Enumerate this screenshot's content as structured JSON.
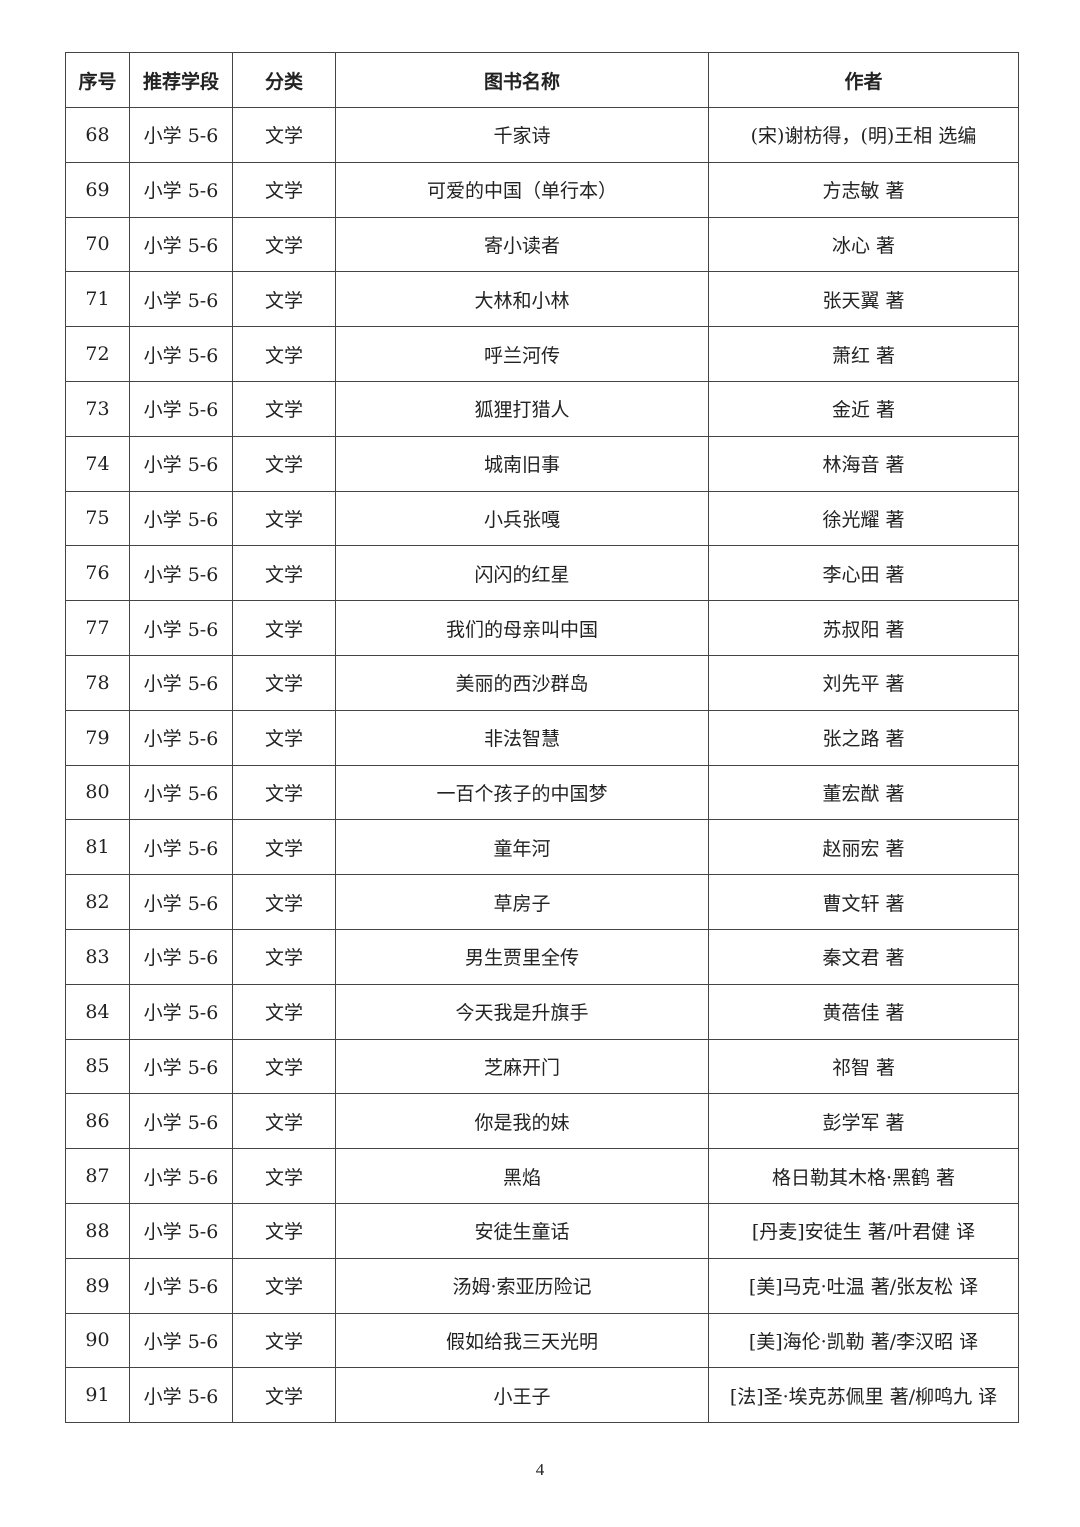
{
  "table": {
    "headers": [
      "序号",
      "推荐学段",
      "分类",
      "图书名称",
      "作者"
    ],
    "rows": [
      [
        "68",
        "小学 5-6",
        "文学",
        "千家诗",
        "(宋)谢枋得，(明)王相 选编"
      ],
      [
        "69",
        "小学 5-6",
        "文学",
        "可爱的中国（单行本）",
        "方志敏 著"
      ],
      [
        "70",
        "小学 5-6",
        "文学",
        "寄小读者",
        "冰心 著"
      ],
      [
        "71",
        "小学 5-6",
        "文学",
        "大林和小林",
        "张天翼 著"
      ],
      [
        "72",
        "小学 5-6",
        "文学",
        "呼兰河传",
        "萧红 著"
      ],
      [
        "73",
        "小学 5-6",
        "文学",
        "狐狸打猎人",
        "金近 著"
      ],
      [
        "74",
        "小学 5-6",
        "文学",
        "城南旧事",
        "林海音 著"
      ],
      [
        "75",
        "小学 5-6",
        "文学",
        "小兵张嘎",
        "徐光耀 著"
      ],
      [
        "76",
        "小学 5-6",
        "文学",
        "闪闪的红星",
        "李心田 著"
      ],
      [
        "77",
        "小学 5-6",
        "文学",
        "我们的母亲叫中国",
        "苏叔阳 著"
      ],
      [
        "78",
        "小学 5-6",
        "文学",
        "美丽的西沙群岛",
        "刘先平 著"
      ],
      [
        "79",
        "小学 5-6",
        "文学",
        "非法智慧",
        "张之路 著"
      ],
      [
        "80",
        "小学 5-6",
        "文学",
        "一百个孩子的中国梦",
        "董宏猷 著"
      ],
      [
        "81",
        "小学 5-6",
        "文学",
        "童年河",
        "赵丽宏 著"
      ],
      [
        "82",
        "小学 5-6",
        "文学",
        "草房子",
        "曹文轩 著"
      ],
      [
        "83",
        "小学 5-6",
        "文学",
        "男生贾里全传",
        "秦文君 著"
      ],
      [
        "84",
        "小学 5-6",
        "文学",
        "今天我是升旗手",
        "黄蓓佳 著"
      ],
      [
        "85",
        "小学 5-6",
        "文学",
        "芝麻开门",
        "祁智 著"
      ],
      [
        "86",
        "小学 5-6",
        "文学",
        "你是我的妹",
        "彭学军 著"
      ],
      [
        "87",
        "小学 5-6",
        "文学",
        "黑焰",
        "格日勒其木格·黑鹤 著"
      ],
      [
        "88",
        "小学 5-6",
        "文学",
        "安徒生童话",
        "[丹麦]安徒生 著/叶君健 译"
      ],
      [
        "89",
        "小学 5-6",
        "文学",
        "汤姆·索亚历险记",
        "[美]马克·吐温 著/张友松 译"
      ],
      [
        "90",
        "小学 5-6",
        "文学",
        "假如给我三天光明",
        "[美]海伦·凯勒 著/李汉昭 译"
      ],
      [
        "91",
        "小学 5-6",
        "文学",
        "小王子",
        "[法]圣·埃克苏佩里 著/柳鸣九 译"
      ]
    ]
  },
  "page_number": "4"
}
